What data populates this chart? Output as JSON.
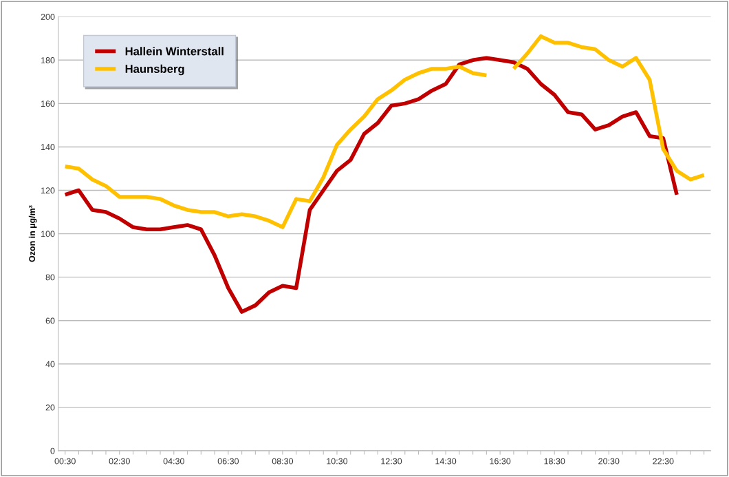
{
  "chart_data": {
    "type": "line",
    "ylabel": "Ozon in µg/m³",
    "categories": [
      "00:30",
      null,
      null,
      null,
      "02:30",
      null,
      null,
      null,
      "04:30",
      null,
      null,
      null,
      "06:30",
      null,
      null,
      null,
      "08:30",
      null,
      null,
      null,
      "10:30",
      null,
      null,
      null,
      "12:30",
      null,
      null,
      null,
      "14:30",
      null,
      null,
      null,
      "16:30",
      null,
      null,
      null,
      "18:30",
      null,
      null,
      null,
      "20:30",
      null,
      null,
      null,
      "22:30",
      null,
      null,
      null
    ],
    "series": [
      {
        "name": "Hallein Winterstall",
        "color": "#c00000",
        "values": [
          118,
          120,
          111,
          110,
          107,
          103,
          102,
          102,
          103,
          104,
          102,
          90,
          75,
          64,
          67,
          73,
          76,
          75,
          111,
          120,
          129,
          134,
          146,
          151,
          159,
          160,
          162,
          166,
          169,
          178,
          180,
          181,
          180,
          179,
          176,
          169,
          164,
          156,
          155,
          148,
          150,
          154,
          156,
          145,
          144,
          118,
          null,
          null
        ]
      },
      {
        "name": "Haunsberg",
        "color": "#ffc000",
        "values": [
          131,
          130,
          125,
          122,
          117,
          117,
          117,
          116,
          113,
          111,
          110,
          110,
          108,
          109,
          108,
          106,
          103,
          116,
          115,
          126,
          141,
          148,
          154,
          162,
          166,
          171,
          174,
          176,
          176,
          177,
          174,
          173,
          null,
          176,
          183,
          191,
          188,
          188,
          186,
          185,
          180,
          177,
          181,
          171,
          139,
          129,
          125,
          127
        ]
      }
    ],
    "ylim": [
      0,
      200
    ],
    "yticks": [
      0,
      20,
      40,
      60,
      80,
      100,
      120,
      140,
      160,
      180,
      200
    ],
    "grid": "y",
    "legend": "top left",
    "marker": "none",
    "line_style": "solid"
  }
}
